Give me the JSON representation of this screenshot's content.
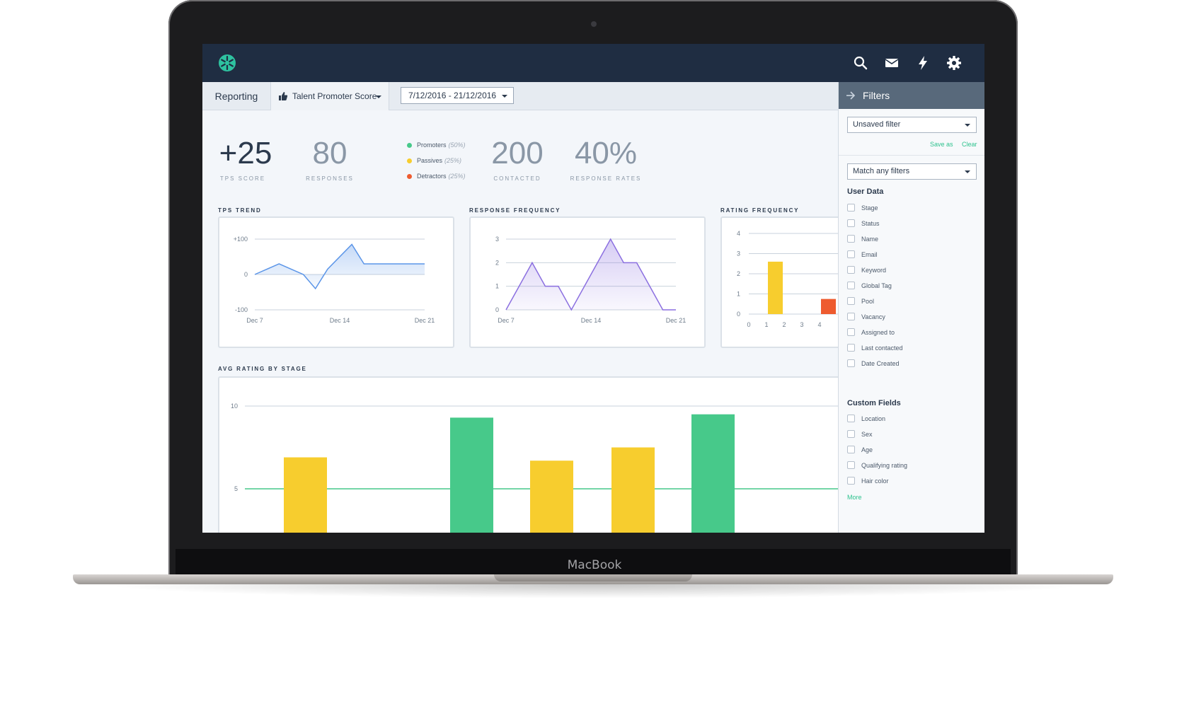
{
  "device": {
    "label": "MacBook"
  },
  "topbar": {
    "icons": [
      "snowflake-logo-icon",
      "search-icon",
      "mail-icon",
      "lightning-icon",
      "gear-icon"
    ],
    "bg_color": "#1f2d42",
    "logo_color": "#2ec2a0"
  },
  "subbar": {
    "section": "Reporting",
    "metric": "Talent Promoter Score",
    "date_range": "7/12/2016 - 21/12/2016"
  },
  "kpis": {
    "tps": {
      "value": "+25",
      "label": "TPS SCORE"
    },
    "responses": {
      "value": "80",
      "label": "RESPONSES"
    },
    "contacted": {
      "value": "200",
      "label": "CONTACTED"
    },
    "response_rates": {
      "value": "40%",
      "label": "RESPONSE RATES"
    }
  },
  "legend": [
    {
      "name": "Promoters",
      "pct": "(50%)",
      "color": "#47c98a"
    },
    {
      "name": "Passives",
      "pct": "(25%)",
      "color": "#f7cd2e"
    },
    {
      "name": "Detractors",
      "pct": "(25%)",
      "color": "#ee5b2f"
    }
  ],
  "sections": {
    "tps_trend": "TPS TREND",
    "response_frequency": "RESPONSE FREQUENCY",
    "rating_frequency": "RATING FREQUENCY",
    "avg_rating": "AVG RATING BY STAGE"
  },
  "chart_data": [
    {
      "id": "tps_trend",
      "type": "area",
      "title": "TPS TREND",
      "x_ticks": [
        "Dec 7",
        "Dec 14",
        "Dec 21"
      ],
      "y_ticks": [
        "+100",
        "0",
        "-100"
      ],
      "ylim": [
        -100,
        100
      ],
      "x": [
        0,
        2,
        4,
        5,
        6,
        8,
        9,
        14
      ],
      "values": [
        0,
        30,
        0,
        -40,
        15,
        85,
        30,
        30
      ],
      "xlim": [
        0,
        14
      ],
      "color": "#5b95e8"
    },
    {
      "id": "response_frequency",
      "type": "area",
      "title": "RESPONSE FREQUENCY",
      "x_ticks": [
        "Dec 7",
        "Dec 14",
        "Dec 21"
      ],
      "y_ticks": [
        "3",
        "2",
        "1",
        "0"
      ],
      "ylim": [
        0,
        3
      ],
      "x": [
        0,
        2,
        3,
        4,
        5,
        8,
        9,
        10,
        12,
        13
      ],
      "values": [
        0,
        2,
        1,
        1,
        0,
        3,
        2,
        2,
        0,
        0
      ],
      "xlim": [
        0,
        13
      ],
      "color": "#8b6fe0"
    },
    {
      "id": "rating_frequency",
      "type": "bar",
      "title": "RATING FREQUENCY",
      "categories": [
        "0",
        "1",
        "2",
        "3",
        "4"
      ],
      "y_ticks": [
        "4",
        "3",
        "2",
        "1",
        "0"
      ],
      "ylim": [
        0,
        4
      ],
      "values": [
        0,
        2.6,
        0,
        0,
        0.75
      ],
      "colors": [
        "#f7cd2e",
        "#f7cd2e",
        "#f7cd2e",
        "#f7cd2e",
        "#ee5b2f"
      ]
    },
    {
      "id": "avg_rating",
      "type": "bar",
      "title": "AVG RATING BY STAGE",
      "y_ticks": [
        "10",
        "5"
      ],
      "ylim": [
        0,
        10
      ],
      "values": [
        6.9,
        9.3,
        6.7,
        7.5,
        9.5
      ],
      "colors": [
        "#f7cd2e",
        "#47c98a",
        "#f7cd2e",
        "#f7cd2e",
        "#47c98a"
      ],
      "reference_line": 5,
      "reference_color": "#47c98a"
    }
  ],
  "filters": {
    "header": "Filters",
    "saved_filter": "Unsaved filter",
    "save_as": "Save as",
    "clear": "Clear",
    "match_mode": "Match any filters",
    "user_data_title": "User Data",
    "user_data": [
      "Stage",
      "Status",
      "Name",
      "Email",
      "Keyword",
      "Global Tag",
      "Pool",
      "Vacancy",
      "Assigned to",
      "Last contacted",
      "Date Created"
    ],
    "custom_fields_title": "Custom Fields",
    "custom_fields": [
      "Location",
      "Sex",
      "Age",
      "Qualifying rating",
      "Hair color"
    ],
    "more": "More"
  }
}
